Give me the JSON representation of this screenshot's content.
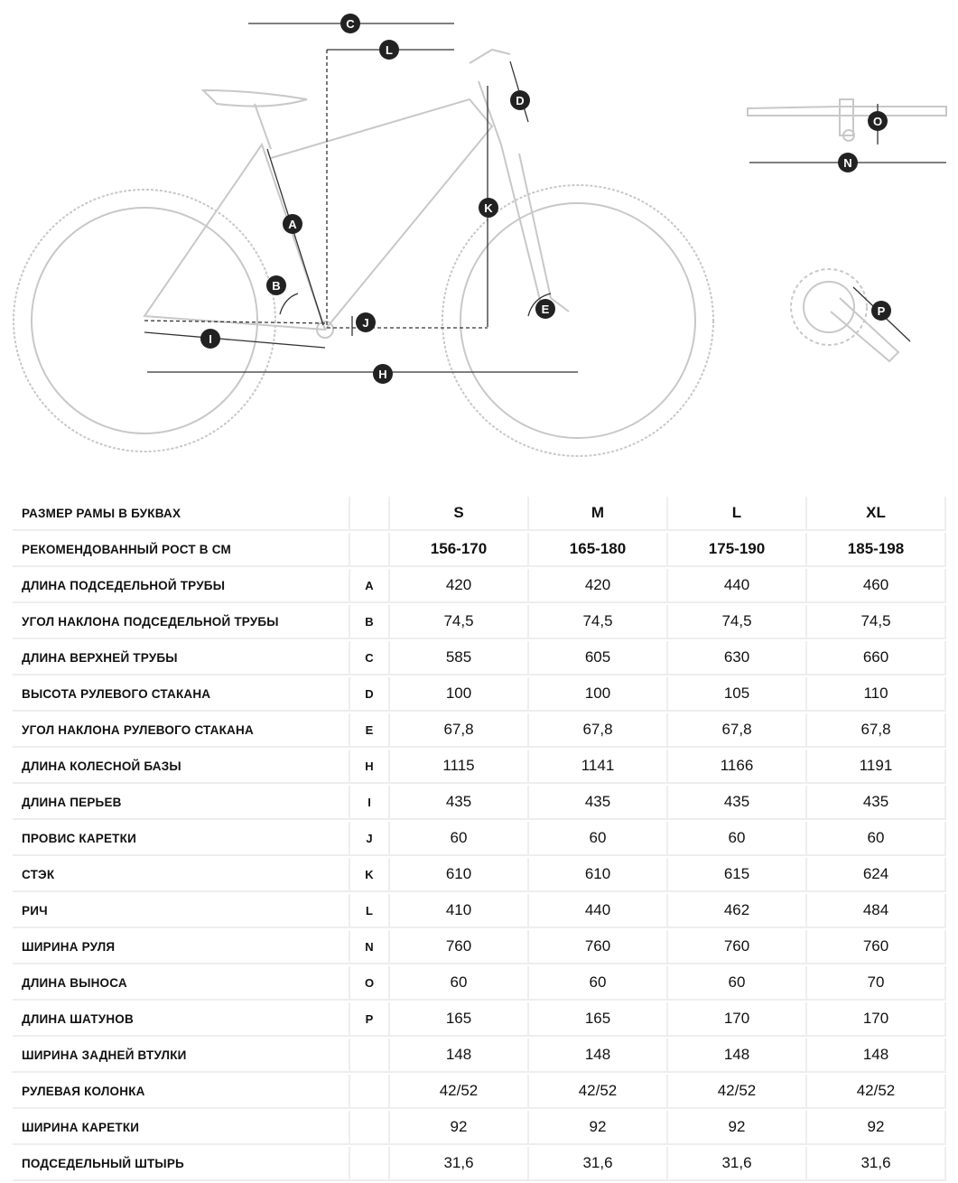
{
  "diagram": {
    "markers": {
      "A": "A",
      "B": "B",
      "C": "C",
      "D": "D",
      "E": "E",
      "H": "H",
      "I": "I",
      "J": "J",
      "K": "K",
      "L": "L",
      "N": "N",
      "O": "O",
      "P": "P"
    },
    "line_color": "#c8c8c8",
    "marker_color": "#222222"
  },
  "table": {
    "header": {
      "label": "РАЗМЕР РАМЫ В БУКВАХ",
      "sizes": [
        "S",
        "M",
        "L",
        "XL"
      ]
    },
    "height_row": {
      "label": "РЕКОМЕНДОВАННЫЙ РОСТ В СМ",
      "values": [
        "156-170",
        "165-180",
        "175-190",
        "185-198"
      ]
    },
    "rows": [
      {
        "label": "ДЛИНА ПОДСЕДЕЛЬНОЙ ТРУБЫ",
        "code": "A",
        "values": [
          "420",
          "420",
          "440",
          "460"
        ]
      },
      {
        "label": "УГОЛ НАКЛОНА ПОДСЕДЕЛЬНОЙ ТРУБЫ",
        "code": "B",
        "values": [
          "74,5",
          "74,5",
          "74,5",
          "74,5"
        ]
      },
      {
        "label": "ДЛИНА ВЕРХНЕЙ ТРУБЫ",
        "code": "C",
        "values": [
          "585",
          "605",
          "630",
          "660"
        ]
      },
      {
        "label": "ВЫСОТА РУЛЕВОГО СТАКАНА",
        "code": "D",
        "values": [
          "100",
          "100",
          "105",
          "110"
        ]
      },
      {
        "label": "УГОЛ НАКЛОНА РУЛЕВОГО СТАКАНА",
        "code": "E",
        "values": [
          "67,8",
          "67,8",
          "67,8",
          "67,8"
        ]
      },
      {
        "label": "ДЛИНА КОЛЕСНОЙ БАЗЫ",
        "code": "H",
        "values": [
          "1115",
          "1141",
          "1166",
          "1191"
        ]
      },
      {
        "label": "ДЛИНА ПЕРЬЕВ",
        "code": "I",
        "values": [
          "435",
          "435",
          "435",
          "435"
        ]
      },
      {
        "label": "ПРОВИС КАРЕТКИ",
        "code": "J",
        "values": [
          "60",
          "60",
          "60",
          "60"
        ]
      },
      {
        "label": "СТЭК",
        "code": "K",
        "values": [
          "610",
          "610",
          "615",
          "624"
        ]
      },
      {
        "label": "РИЧ",
        "code": "L",
        "values": [
          "410",
          "440",
          "462",
          "484"
        ]
      },
      {
        "label": "ШИРИНА РУЛЯ",
        "code": "N",
        "values": [
          "760",
          "760",
          "760",
          "760"
        ]
      },
      {
        "label": "ДЛИНА ВЫНОСА",
        "code": "O",
        "values": [
          "60",
          "60",
          "60",
          "70"
        ]
      },
      {
        "label": "ДЛИНА ШАТУНОВ",
        "code": "P",
        "values": [
          "165",
          "165",
          "170",
          "170"
        ]
      },
      {
        "label": "ШИРИНА ЗАДНЕЙ ВТУЛКИ",
        "code": "",
        "values": [
          "148",
          "148",
          "148",
          "148"
        ]
      },
      {
        "label": "РУЛЕВАЯ КОЛОНКА",
        "code": "",
        "values": [
          "42/52",
          "42/52",
          "42/52",
          "42/52"
        ]
      },
      {
        "label": "ШИРИНА КАРЕТКИ",
        "code": "",
        "values": [
          "92",
          "92",
          "92",
          "92"
        ]
      },
      {
        "label": "ПОДСЕДЕЛЬНЫЙ ШТЫРЬ",
        "code": "",
        "values": [
          "31,6",
          "31,6",
          "31,6",
          "31,6"
        ]
      }
    ]
  }
}
